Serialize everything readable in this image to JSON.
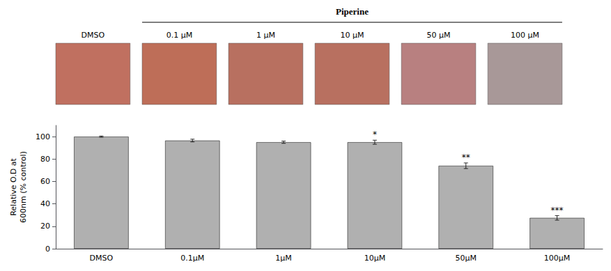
{
  "chart_data": {
    "type": "bar",
    "categories": [
      "DMSO",
      "0.1μM",
      "1μM",
      "10μM",
      "50μM",
      "100μM"
    ],
    "values": [
      100.0,
      96.5,
      95.0,
      95.0,
      74.0,
      27.5
    ],
    "errors": [
      0.5,
      1.2,
      1.0,
      1.8,
      2.5,
      2.0
    ],
    "significance": [
      null,
      null,
      null,
      "*",
      "**",
      "***"
    ],
    "color": "#b0b0b0",
    "ylabel": "Relative O.D at\n600nm (% control)",
    "ylim": [
      0,
      110
    ],
    "yticks": [
      0,
      20,
      40,
      60,
      80,
      100
    ],
    "grid": false,
    "annotations": {
      "group_label": "Piperine",
      "panel_labels": [
        "DMSO",
        "0.1 μM",
        "1 μM",
        "10 μM",
        "50 μM",
        "100 μM"
      ],
      "panel_colors": [
        "#c07060",
        "#be6e58",
        "#b87060",
        "#b87060",
        "#b88080",
        "#a89898"
      ]
    }
  }
}
